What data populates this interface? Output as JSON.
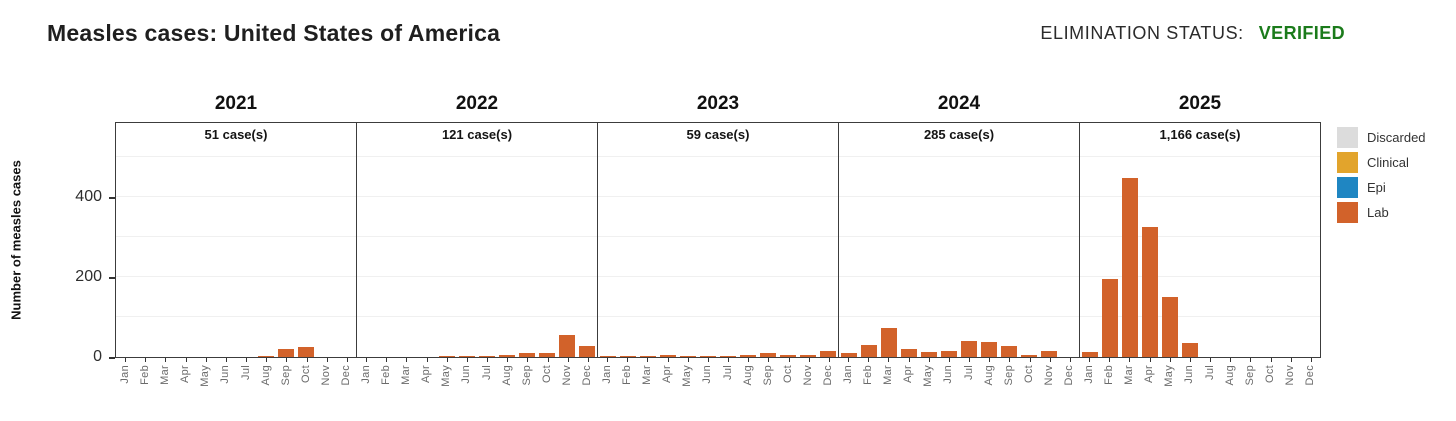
{
  "header": {
    "title": "Measles cases: United States of America",
    "elimination_label": "ELIMINATION STATUS:",
    "elimination_value": "VERIFIED",
    "elimination_color": "#1b7b1b"
  },
  "chart_data": {
    "type": "bar",
    "title": "Measles cases: United States of America",
    "ylabel": "Number of measles cases",
    "yticks": [
      0,
      200,
      400
    ],
    "ylim": [
      0,
      590
    ],
    "gridline_interval": 100,
    "grid": true,
    "legend_position": "right",
    "months": [
      "Jan",
      "Feb",
      "Mar",
      "Apr",
      "May",
      "Jun",
      "Jul",
      "Aug",
      "Sep",
      "Oct",
      "Nov",
      "Dec"
    ],
    "bar_color": "#d2622a",
    "bar_classification": "Lab",
    "legend": [
      {
        "label": "Discarded",
        "color": "#dcdcdc"
      },
      {
        "label": "Clinical",
        "color": "#e2a42c"
      },
      {
        "label": "Epi",
        "color": "#1f86c2"
      },
      {
        "label": "Lab",
        "color": "#d2622a"
      }
    ],
    "panels": [
      {
        "year": "2021",
        "total_label": "51 case(s)",
        "total": 51,
        "values": [
          0,
          1,
          0,
          1,
          0,
          0,
          1,
          3,
          20,
          24,
          1,
          0
        ]
      },
      {
        "year": "2022",
        "total_label": "121 case(s)",
        "total": 121,
        "values": [
          1,
          1,
          1,
          1,
          2,
          3,
          3,
          5,
          11,
          10,
          55,
          28
        ]
      },
      {
        "year": "2023",
        "total_label": "59 case(s)",
        "total": 59,
        "values": [
          2,
          2,
          3,
          4,
          3,
          2,
          3,
          4,
          10,
          5,
          5,
          16
        ]
      },
      {
        "year": "2024",
        "total_label": "285 case(s)",
        "total": 285,
        "values": [
          11,
          31,
          72,
          19,
          12,
          16,
          40,
          37,
          28,
          5,
          14,
          0
        ]
      },
      {
        "year": "2025",
        "total_label": "1,166 case(s)",
        "total": 1166,
        "values": [
          13,
          195,
          448,
          325,
          150,
          35,
          0,
          0,
          0,
          0,
          0,
          0
        ]
      }
    ]
  }
}
